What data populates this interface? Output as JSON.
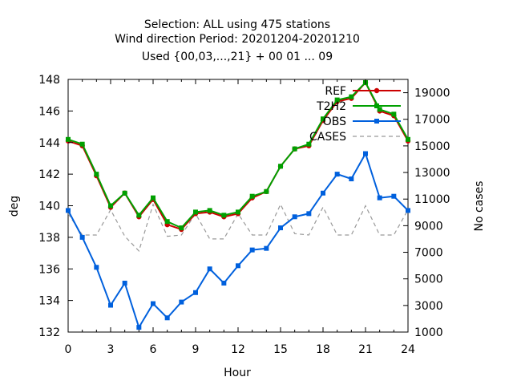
{
  "chart_data": {
    "type": "line",
    "title_lines": [
      "Selection: ALL using   475 stations",
      "Wind direction   Period: 20201204-20201210",
      "Used {00,03,...,21} + 00 01 ... 09"
    ],
    "xlabel": "Hour",
    "ylabel": "deg",
    "y2label": "No cases",
    "xlim": [
      0,
      24
    ],
    "ylim": [
      132,
      148
    ],
    "y2lim": [
      1000,
      20000
    ],
    "xticks": [
      0,
      3,
      6,
      9,
      12,
      15,
      18,
      21,
      24
    ],
    "yticks": [
      132,
      134,
      136,
      138,
      140,
      142,
      144,
      146,
      148
    ],
    "y2ticks": [
      1000,
      3000,
      5000,
      7000,
      9000,
      11000,
      13000,
      15000,
      17000,
      19000
    ],
    "x": [
      0,
      1,
      2,
      3,
      4,
      5,
      6,
      7,
      8,
      9,
      10,
      11,
      12,
      13,
      14,
      15,
      16,
      17,
      18,
      19,
      20,
      21,
      22,
      23,
      24
    ],
    "legend_position": "top-right",
    "grid": false,
    "series": [
      {
        "name": "REF",
        "color": "#cc0000",
        "marker": "circle",
        "axis": "y",
        "values": [
          144.1,
          143.8,
          141.9,
          139.9,
          140.8,
          139.3,
          140.4,
          138.8,
          138.5,
          139.5,
          139.6,
          139.3,
          139.5,
          140.5,
          140.9,
          142.5,
          143.6,
          143.8,
          145.4,
          146.6,
          146.8,
          147.8,
          146.0,
          145.7,
          144.1
        ]
      },
      {
        "name": "T2H2",
        "color": "#00a000",
        "marker": "square",
        "axis": "y",
        "values": [
          144.2,
          143.9,
          142.0,
          140.0,
          140.8,
          139.4,
          140.5,
          139.0,
          138.6,
          139.6,
          139.7,
          139.4,
          139.6,
          140.6,
          140.9,
          142.5,
          143.6,
          143.9,
          145.5,
          146.7,
          146.9,
          147.8,
          146.1,
          145.8,
          144.2
        ]
      },
      {
        "name": "OBS",
        "color": "#0060dd",
        "marker": "square",
        "axis": "y",
        "values": [
          139.7,
          138.0,
          136.1,
          133.7,
          135.1,
          132.3,
          133.8,
          132.9,
          133.9,
          134.5,
          136.0,
          135.1,
          136.2,
          137.2,
          137.3,
          138.6,
          139.3,
          139.5,
          140.8,
          142.0,
          141.7,
          143.3,
          140.5,
          140.6,
          139.7
        ]
      },
      {
        "name": "CASES",
        "color": "#999999",
        "marker": "none",
        "dashed": true,
        "axis": "y2",
        "values": [
          9900,
          8300,
          8300,
          10200,
          8200,
          7100,
          10600,
          8200,
          8300,
          9900,
          8000,
          8000,
          9900,
          8300,
          8300,
          10600,
          8400,
          8300,
          10400,
          8300,
          8300,
          10500,
          8300,
          8300,
          10200
        ]
      }
    ]
  }
}
